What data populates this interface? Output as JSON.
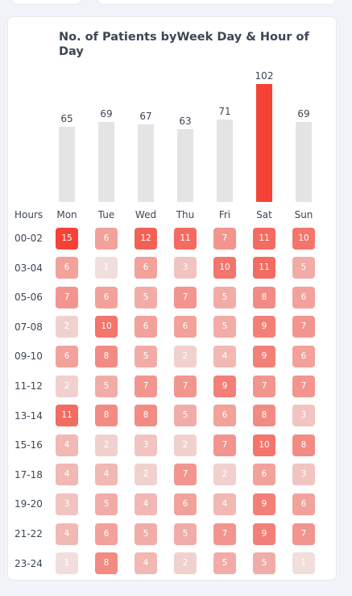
{
  "chart_data": {
    "type": "heatmap",
    "title": "No. of Patients byWeek Day & Hour of Day",
    "row_axis_label": "Hours",
    "days": [
      "Mon",
      "Tue",
      "Wed",
      "Thu",
      "Fri",
      "Sat",
      "Sun"
    ],
    "day_totals": [
      65,
      69,
      67,
      63,
      71,
      102,
      69
    ],
    "hours": [
      "00-02",
      "03-04",
      "05-06",
      "07-08",
      "09-10",
      "11-12",
      "13-14",
      "15-16",
      "17-18",
      "19-20",
      "21-22",
      "23-24"
    ],
    "values": [
      [
        15,
        6,
        12,
        11,
        7,
        11,
        10
      ],
      [
        6,
        1,
        6,
        3,
        10,
        11,
        5
      ],
      [
        7,
        6,
        5,
        7,
        5,
        8,
        6
      ],
      [
        2,
        10,
        6,
        6,
        5,
        9,
        7
      ],
      [
        6,
        8,
        5,
        2,
        4,
        9,
        6
      ],
      [
        2,
        5,
        7,
        7,
        9,
        7,
        7
      ],
      [
        11,
        8,
        8,
        5,
        6,
        8,
        3
      ],
      [
        4,
        2,
        3,
        2,
        7,
        10,
        8
      ],
      [
        4,
        4,
        2,
        7,
        2,
        6,
        3
      ],
      [
        3,
        5,
        4,
        6,
        4,
        9,
        6
      ],
      [
        4,
        6,
        5,
        5,
        7,
        9,
        7
      ],
      [
        1,
        8,
        4,
        2,
        5,
        5,
        1
      ]
    ],
    "highlight_day": "Sat",
    "colors": {
      "bar": "#e4e4e4",
      "bar_highlight": "#f44336",
      "cell_max": "#f44336",
      "cell_min": "#f0f0f0"
    }
  }
}
